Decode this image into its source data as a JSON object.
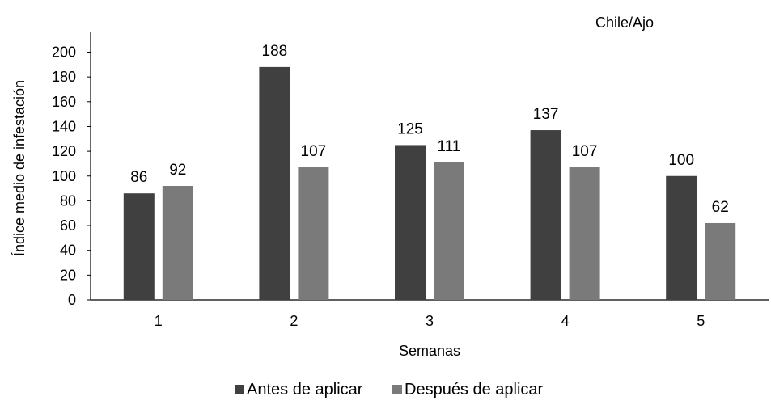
{
  "chart_data": {
    "type": "bar",
    "title": "Chile/Ajo",
    "xlabel": "Semanas",
    "ylabel": "Índice medio de infestación",
    "categories": [
      "1",
      "2",
      "3",
      "4",
      "5"
    ],
    "series": [
      {
        "name": "Antes de aplicar",
        "values": [
          86,
          188,
          125,
          137,
          100
        ],
        "color": "#404040"
      },
      {
        "name": "Después de aplicar",
        "values": [
          92,
          107,
          111,
          107,
          62
        ],
        "color": "#7a7a7a"
      }
    ],
    "ylim": [
      0,
      200
    ],
    "yticks": [
      0,
      20,
      40,
      60,
      80,
      100,
      120,
      140,
      160,
      180,
      200
    ],
    "grid": false,
    "legend_position": "bottom"
  }
}
